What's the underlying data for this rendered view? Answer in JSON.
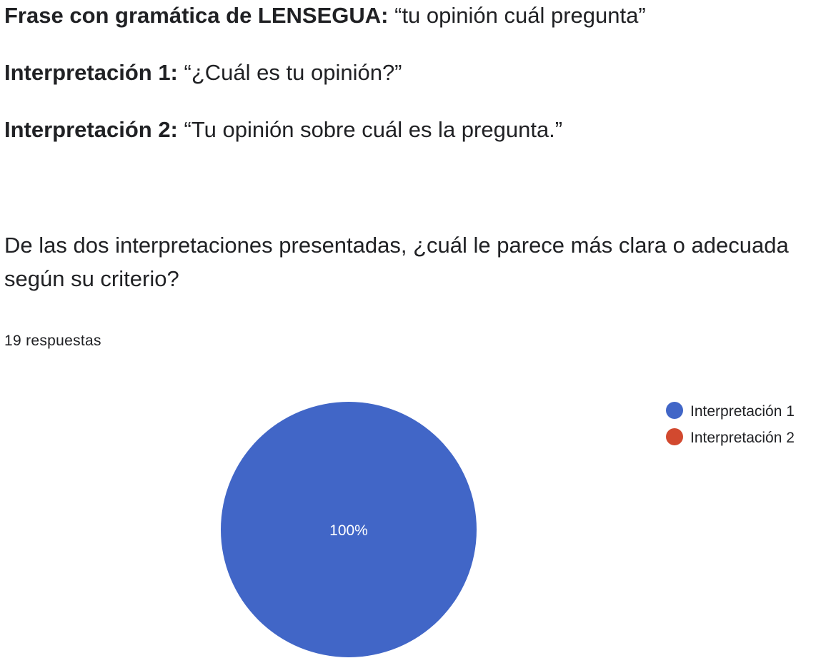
{
  "intro": {
    "phrase": {
      "label": "Frase con gramática de LENSEGUA:",
      "text": "“tu opinión cuál pregunta”"
    },
    "interpretation_1": {
      "label": "Interpretación 1:",
      "text": "“¿Cuál es tu opinión?”"
    },
    "interpretation_2": {
      "label": "Interpretación 2:",
      "text": "“Tu opinión sobre cuál es la pregunta.”"
    }
  },
  "question": {
    "text": "De las dos interpretaciones presentadas, ¿cuál le parece más clara o adecuada según su criterio?",
    "responses": "19 respuestas"
  },
  "chart_data": {
    "type": "pie",
    "title": "",
    "categories": [
      "Interpretación 1",
      "Interpretación 2"
    ],
    "values": [
      100,
      0
    ],
    "labels": [
      "100%",
      ""
    ],
    "colors": [
      "#4166C7",
      "#D2492F"
    ],
    "legend": "top-right"
  }
}
